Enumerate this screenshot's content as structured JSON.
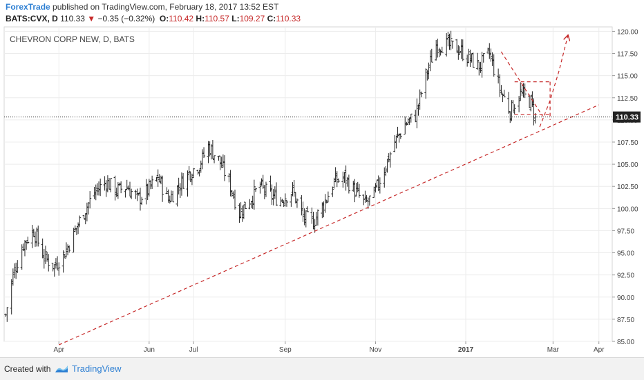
{
  "header": {
    "brand": "ForexTrade",
    "published": "published on TradingView.com, February 18, 2017 13:52 EST"
  },
  "quote": {
    "symbol": "BATS:CVX, D",
    "last": "110.33",
    "arrow": "▼",
    "change": "−0.35 (−0.32%)",
    "o_label": "O:",
    "o": "110.42",
    "h_label": "H:",
    "h": "110.57",
    "l_label": "L:",
    "l": "109.27",
    "c_label": "C:",
    "c": "110.33"
  },
  "footer": {
    "created": "Created with",
    "brand": "TradingView"
  },
  "colors": {
    "bars": "#222222",
    "drawings": "#c62828",
    "brand": "#2d7fd3",
    "grid": "#ececec"
  },
  "chart_data": {
    "type": "ohlc",
    "title": "CHEVRON CORP NEW, D, BATS",
    "grid": true,
    "price_axis": "right",
    "ylim": [
      85,
      120.5
    ],
    "yticks": [
      85,
      87.5,
      90,
      92.5,
      95,
      97.5,
      100,
      102.5,
      105,
      107.5,
      110,
      112.5,
      115,
      117.5,
      120
    ],
    "ytick_labels": [
      "85.00",
      "87.50",
      "90.00",
      "92.50",
      "95.00",
      "97.50",
      "100.00",
      "102.50",
      "105.00",
      "107.50",
      "110.00",
      "112.50",
      "115.00",
      "117.50",
      "120.00"
    ],
    "xlim": [
      "2016-02-24",
      "2017-04-10"
    ],
    "xticks": [
      {
        "date": "2016-04-01",
        "label": "Apr",
        "bold": false
      },
      {
        "date": "2016-06-01",
        "label": "Jun",
        "bold": false
      },
      {
        "date": "2016-07-01",
        "label": "Jul",
        "bold": false
      },
      {
        "date": "2016-09-01",
        "label": "Sep",
        "bold": false
      },
      {
        "date": "2016-11-01",
        "label": "Nov",
        "bold": false
      },
      {
        "date": "2017-01-01",
        "label": "2017",
        "bold": true
      },
      {
        "date": "2017-03-01",
        "label": "Mar",
        "bold": false
      },
      {
        "date": "2017-04-01",
        "label": "Apr",
        "bold": false
      }
    ],
    "last_price": {
      "value": 110.33,
      "label": "110.33"
    },
    "close_path": [
      [
        "2016-02-25",
        88.0
      ],
      [
        "2016-03-01",
        92.5
      ],
      [
        "2016-03-08",
        96.0
      ],
      [
        "2016-03-15",
        97.5
      ],
      [
        "2016-03-22",
        94.5
      ],
      [
        "2016-03-29",
        93.5
      ],
      [
        "2016-04-05",
        95.0
      ],
      [
        "2016-04-12",
        97.5
      ],
      [
        "2016-04-19",
        100.0
      ],
      [
        "2016-04-26",
        102.0
      ],
      [
        "2016-05-03",
        103.0
      ],
      [
        "2016-05-10",
        102.0
      ],
      [
        "2016-05-17",
        102.5
      ],
      [
        "2016-05-24",
        101.0
      ],
      [
        "2016-05-31",
        102.0
      ],
      [
        "2016-06-07",
        103.5
      ],
      [
        "2016-06-14",
        101.0
      ],
      [
        "2016-06-21",
        102.5
      ],
      [
        "2016-06-28",
        104.0
      ],
      [
        "2016-07-05",
        105.0
      ],
      [
        "2016-07-11",
        107.0
      ],
      [
        "2016-07-18",
        105.5
      ],
      [
        "2016-07-25",
        103.0
      ],
      [
        "2016-08-01",
        99.5
      ],
      [
        "2016-08-08",
        101.0
      ],
      [
        "2016-08-15",
        102.5
      ],
      [
        "2016-08-22",
        101.5
      ],
      [
        "2016-08-29",
        101.0
      ],
      [
        "2016-09-06",
        102.0
      ],
      [
        "2016-09-13",
        99.0
      ],
      [
        "2016-09-20",
        98.5
      ],
      [
        "2016-09-27",
        100.5
      ],
      [
        "2016-10-04",
        103.0
      ],
      [
        "2016-10-11",
        103.5
      ],
      [
        "2016-10-18",
        102.0
      ],
      [
        "2016-10-25",
        100.5
      ],
      [
        "2016-10-31",
        101.5
      ],
      [
        "2016-11-07",
        104.5
      ],
      [
        "2016-11-14",
        107.5
      ],
      [
        "2016-11-21",
        109.5
      ],
      [
        "2016-11-28",
        110.5
      ],
      [
        "2016-12-05",
        115.0
      ],
      [
        "2016-12-12",
        118.5
      ],
      [
        "2016-12-19",
        118.5
      ],
      [
        "2016-12-27",
        118.0
      ],
      [
        "2017-01-03",
        117.0
      ],
      [
        "2017-01-10",
        116.0
      ],
      [
        "2017-01-17",
        117.5
      ],
      [
        "2017-01-24",
        113.5
      ],
      [
        "2017-01-31",
        111.0
      ],
      [
        "2017-02-07",
        113.0
      ],
      [
        "2017-02-14",
        112.0
      ],
      [
        "2017-02-17",
        110.33
      ]
    ],
    "drawings": [
      {
        "name": "support-trendline",
        "style": "dashed",
        "points": [
          [
            "2016-04-01",
            84.6
          ],
          [
            "2017-04-01",
            111.7
          ]
        ]
      },
      {
        "name": "triangle-upper",
        "style": "dashed",
        "points": [
          [
            "2017-01-25",
            117.7
          ],
          [
            "2017-02-22",
            110.4
          ]
        ]
      },
      {
        "name": "rectangle-top",
        "style": "dashed",
        "points": [
          [
            "2017-02-03",
            114.3
          ],
          [
            "2017-02-27",
            114.3
          ]
        ]
      },
      {
        "name": "rectangle-right",
        "style": "dashed",
        "points": [
          [
            "2017-02-27",
            114.3
          ],
          [
            "2017-02-27",
            110.0
          ]
        ]
      },
      {
        "name": "rectangle-bottom",
        "style": "dashed",
        "points": [
          [
            "2017-02-03",
            110.6
          ],
          [
            "2017-02-27",
            110.6
          ]
        ]
      },
      {
        "name": "projection-arrow",
        "style": "dashed",
        "arrow": true,
        "points": [
          [
            "2017-02-20",
            109.2
          ],
          [
            "2017-02-27",
            112.2
          ],
          [
            "2017-03-05",
            115.5
          ],
          [
            "2017-03-11",
            119.5
          ]
        ]
      }
    ]
  }
}
